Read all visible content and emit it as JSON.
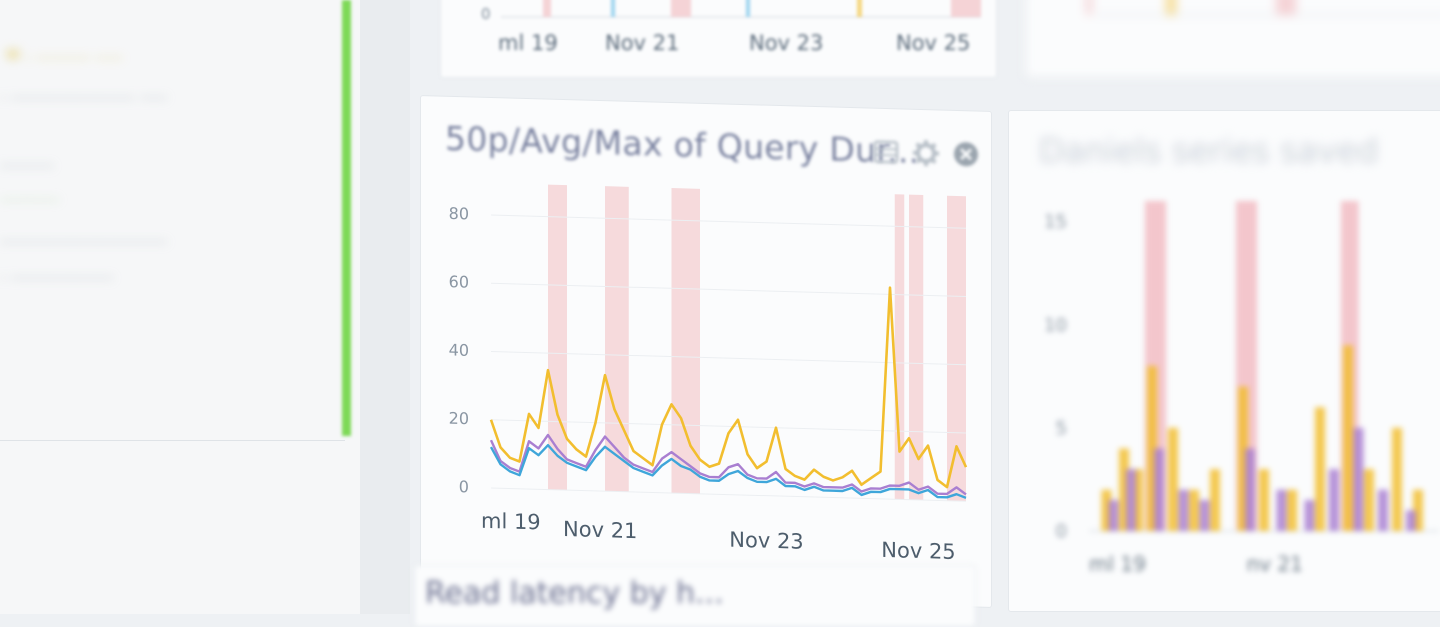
{
  "left_pane": {
    "lines": [
      "w . ..........   .....",
      ". ....................... .....",
      "..........",
      "...........",
      "...............................",
      ". ..................."
    ]
  },
  "top_panel": {
    "x_ticks": [
      "ml 19",
      "Nov 21",
      "Nov 23",
      "Nov 25"
    ],
    "y_tick": "0"
  },
  "main_panel": {
    "title": "50p/Avg/Max of Query Dur...",
    "icons": [
      "list-icon",
      "gear-icon",
      "close-icon"
    ]
  },
  "right_panel": {
    "title": "Daniels series saved"
  },
  "bottom_panel": {
    "title": "Read latency by h..."
  },
  "colors": {
    "max": "#f2be2f",
    "avg": "#a97fd1",
    "p50": "#3fa6da",
    "band": "#f5d3d6",
    "accent_green": "#7ed957"
  },
  "chart_data": [
    {
      "type": "line",
      "title": "50p/Avg/Max of Query Dur...",
      "x_ticks": [
        "ml 19",
        "Nov 21",
        "Nov 23",
        "Nov 25"
      ],
      "y_ticks": [
        "0",
        "20",
        "40",
        "60",
        "80"
      ],
      "ylim": [
        0,
        85
      ],
      "grid": true,
      "highlight_bands": [
        [
          0.12,
          0.16
        ],
        [
          0.24,
          0.29
        ],
        [
          0.38,
          0.44
        ],
        [
          0.85,
          0.87
        ],
        [
          0.88,
          0.91
        ],
        [
          0.96,
          1.0
        ]
      ],
      "series": [
        {
          "color": "#f2be2f",
          "x": [
            0,
            0.02,
            0.04,
            0.06,
            0.08,
            0.1,
            0.12,
            0.14,
            0.16,
            0.18,
            0.2,
            0.22,
            0.24,
            0.26,
            0.28,
            0.3,
            0.32,
            0.34,
            0.36,
            0.38,
            0.4,
            0.42,
            0.44,
            0.46,
            0.48,
            0.5,
            0.52,
            0.54,
            0.56,
            0.58,
            0.6,
            0.62,
            0.64,
            0.66,
            0.68,
            0.7,
            0.72,
            0.74,
            0.76,
            0.78,
            0.8,
            0.82,
            0.84,
            0.86,
            0.88,
            0.9,
            0.92,
            0.94,
            0.96,
            0.98,
            1.0
          ],
          "values": [
            20,
            12,
            9,
            8,
            22,
            18,
            35,
            22,
            15,
            12,
            10,
            20,
            34,
            24,
            18,
            12,
            10,
            8,
            20,
            26,
            22,
            14,
            10,
            8,
            9,
            18,
            22,
            12,
            8,
            10,
            20,
            8,
            6,
            5,
            8,
            6,
            5,
            6,
            8,
            4,
            6,
            8,
            62,
            14,
            18,
            12,
            16,
            6,
            4,
            16,
            10
          ]
        },
        {
          "color": "#a97fd1",
          "x": [
            0,
            0.02,
            0.04,
            0.06,
            0.08,
            0.1,
            0.12,
            0.14,
            0.16,
            0.18,
            0.2,
            0.22,
            0.24,
            0.26,
            0.28,
            0.3,
            0.32,
            0.34,
            0.36,
            0.38,
            0.4,
            0.42,
            0.44,
            0.46,
            0.48,
            0.5,
            0.52,
            0.54,
            0.56,
            0.58,
            0.6,
            0.62,
            0.64,
            0.66,
            0.68,
            0.7,
            0.72,
            0.74,
            0.76,
            0.78,
            0.8,
            0.82,
            0.84,
            0.86,
            0.88,
            0.9,
            0.92,
            0.94,
            0.96,
            0.98,
            1.0
          ],
          "values": [
            14,
            8,
            6,
            5,
            14,
            12,
            16,
            12,
            9,
            8,
            7,
            12,
            16,
            13,
            10,
            8,
            7,
            6,
            10,
            12,
            10,
            8,
            6,
            5,
            5,
            8,
            9,
            6,
            5,
            5,
            7,
            4,
            4,
            3,
            4,
            3,
            3,
            3,
            4,
            2,
            3,
            3,
            4,
            4,
            5,
            3,
            4,
            2,
            2,
            4,
            2
          ]
        },
        {
          "color": "#3fa6da",
          "x": [
            0,
            0.02,
            0.04,
            0.06,
            0.08,
            0.1,
            0.12,
            0.14,
            0.16,
            0.18,
            0.2,
            0.22,
            0.24,
            0.26,
            0.28,
            0.3,
            0.32,
            0.34,
            0.36,
            0.38,
            0.4,
            0.42,
            0.44,
            0.46,
            0.48,
            0.5,
            0.52,
            0.54,
            0.56,
            0.58,
            0.6,
            0.62,
            0.64,
            0.66,
            0.68,
            0.7,
            0.72,
            0.74,
            0.76,
            0.78,
            0.8,
            0.82,
            0.84,
            0.86,
            0.88,
            0.9,
            0.92,
            0.94,
            0.96,
            0.98,
            1.0
          ],
          "values": [
            12,
            7,
            5,
            4,
            12,
            10,
            13,
            10,
            8,
            7,
            6,
            10,
            13,
            11,
            9,
            7,
            6,
            5,
            8,
            10,
            8,
            7,
            5,
            4,
            4,
            6,
            7,
            5,
            4,
            4,
            5,
            3,
            3,
            2,
            3,
            2,
            2,
            2,
            3,
            1,
            2,
            2,
            3,
            3,
            3,
            2,
            3,
            1,
            1,
            2,
            1
          ]
        }
      ]
    },
    {
      "type": "bar",
      "title": "Daniels series saved",
      "y_ticks": [
        "0",
        "5",
        "10",
        "15"
      ],
      "ylim": [
        0,
        16
      ],
      "x_ticks": [
        "ml 19",
        "nv 21"
      ],
      "highlight_bands": [
        [
          0.16,
          0.22
        ],
        [
          0.42,
          0.48
        ],
        [
          0.72,
          0.77
        ]
      ],
      "series": [
        {
          "color": "#f2be2f",
          "x": [
            0.05,
            0.1,
            0.14,
            0.18,
            0.24,
            0.3,
            0.36,
            0.44,
            0.5,
            0.58,
            0.66,
            0.74,
            0.8,
            0.88,
            0.94
          ],
          "values": [
            2,
            4,
            3,
            8,
            5,
            2,
            3,
            7,
            3,
            2,
            6,
            9,
            3,
            5,
            2
          ]
        },
        {
          "color": "#a97fd1",
          "x": [
            0.07,
            0.12,
            0.2,
            0.27,
            0.33,
            0.46,
            0.55,
            0.63,
            0.7,
            0.77,
            0.84,
            0.92
          ],
          "values": [
            1.5,
            3,
            4,
            2,
            1.5,
            4,
            2,
            1.5,
            3,
            5,
            2,
            1
          ]
        }
      ]
    }
  ]
}
